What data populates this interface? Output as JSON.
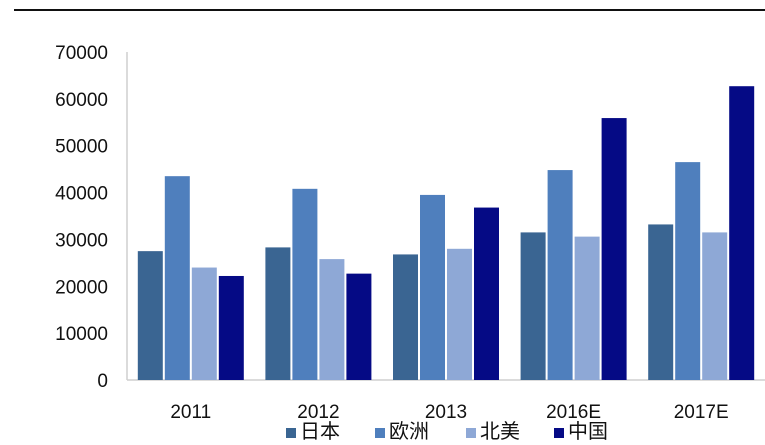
{
  "chart_data": {
    "type": "bar",
    "categories": [
      "2011",
      "2012",
      "2013",
      "2016E",
      "2017E"
    ],
    "series": [
      {
        "name": "日本",
        "color": "#3a6592",
        "values": [
          27500,
          28300,
          26800,
          31500,
          33200
        ]
      },
      {
        "name": "欧洲",
        "color": "#4f7fbd",
        "values": [
          43500,
          40800,
          39500,
          44800,
          46500
        ]
      },
      {
        "name": "北美",
        "color": "#8ea8d6",
        "values": [
          24000,
          25800,
          28000,
          30600,
          31500
        ]
      },
      {
        "name": "中国",
        "color": "#050a85",
        "values": [
          22200,
          22700,
          36800,
          55900,
          62700
        ]
      }
    ],
    "y_ticks": [
      "0",
      "10000",
      "20000",
      "30000",
      "40000",
      "50000",
      "60000",
      "70000"
    ],
    "ylim": [
      0,
      70000
    ],
    "legend_position": "bottom",
    "grid": false
  }
}
